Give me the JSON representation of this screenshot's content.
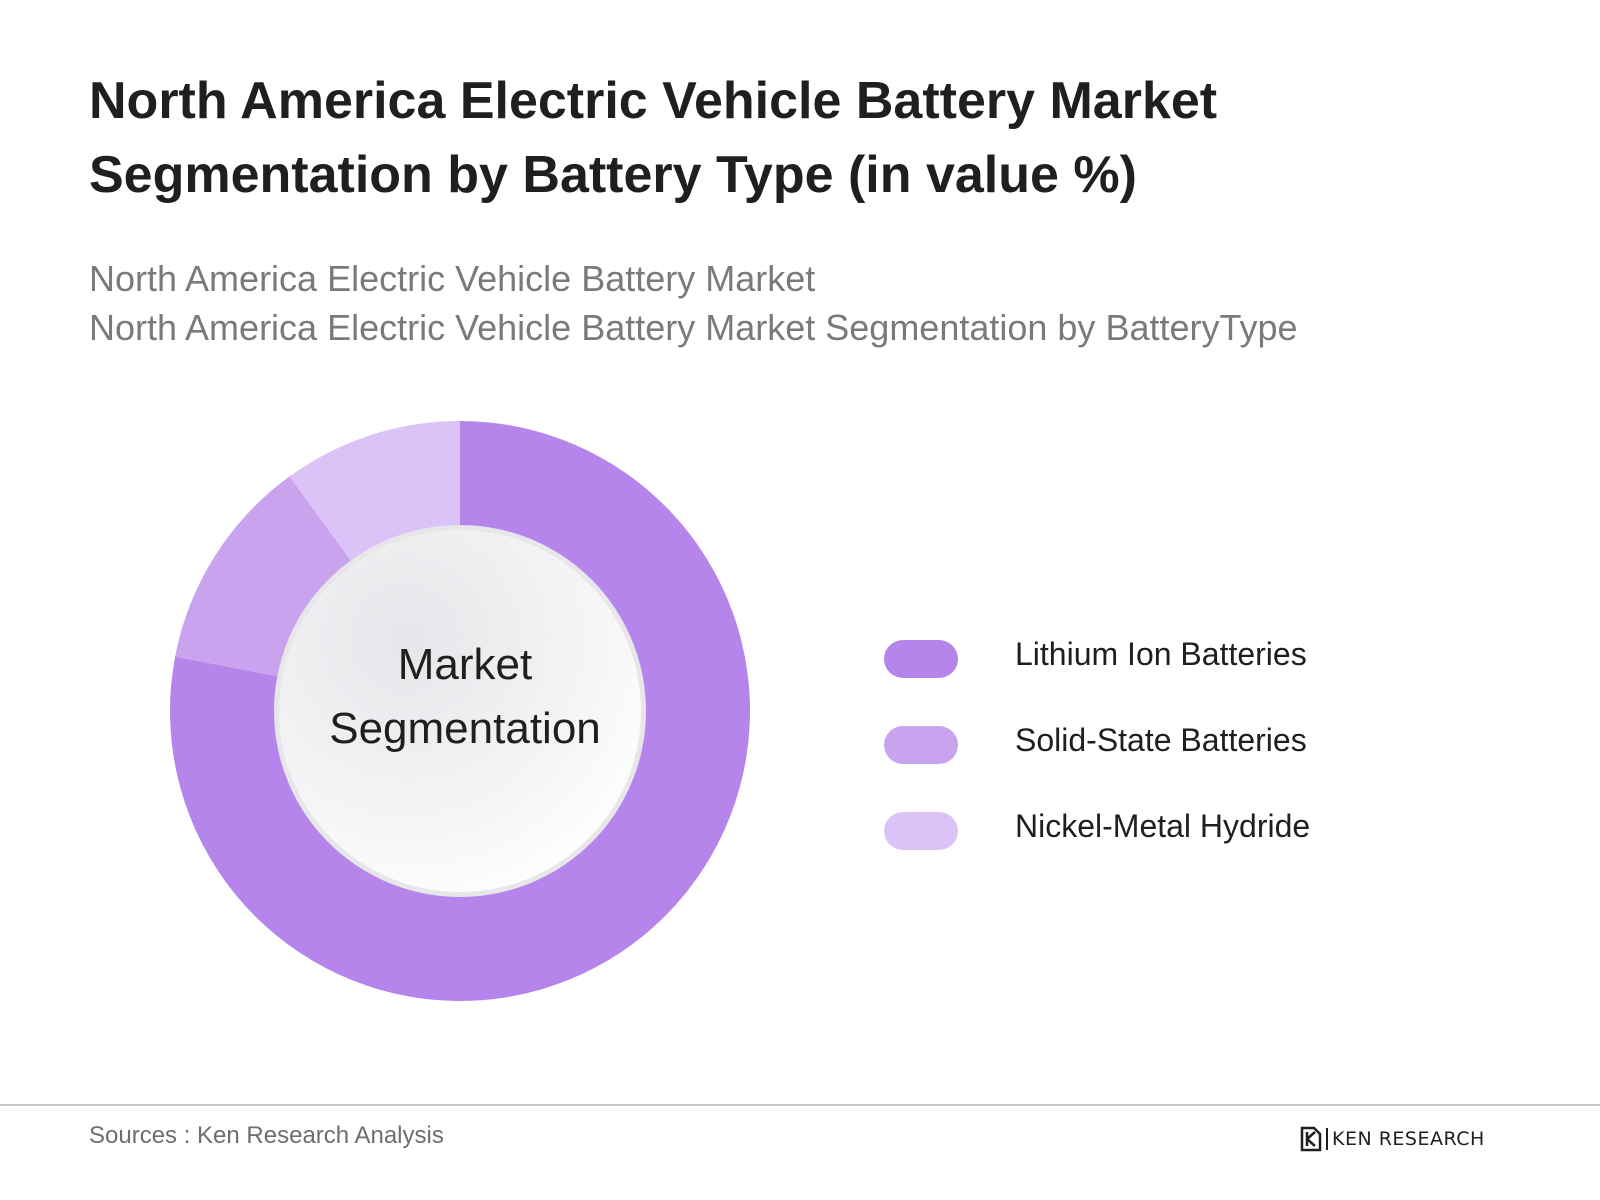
{
  "title": {
    "line1": "North America Electric Vehicle Battery Market",
    "line2": "Segmentation by Battery Type (in value %)"
  },
  "subtitle": {
    "line1": "North America Electric Vehicle Battery Market",
    "line2": "North America Electric Vehicle Battery Market Segmentation by BatteryType"
  },
  "chart_data": {
    "type": "pie",
    "variant": "donut",
    "center_label": {
      "line1": "Market",
      "line2": "Segmentation"
    },
    "legend_position": "right",
    "series": [
      {
        "name": "Lithium Ion Batteries",
        "value": 78,
        "color": "#b585ec"
      },
      {
        "name": "Solid-State Batteries",
        "value": 12,
        "color": "#c9a3ee"
      },
      {
        "name": "Nickel-Metal Hydride",
        "value": 10,
        "color": "#dcc3f7"
      }
    ]
  },
  "footer": {
    "source": "Sources : Ken Research Analysis",
    "brand": "KEN RESEARCH",
    "brand_logo_icon": "ken-research-logo-icon"
  }
}
